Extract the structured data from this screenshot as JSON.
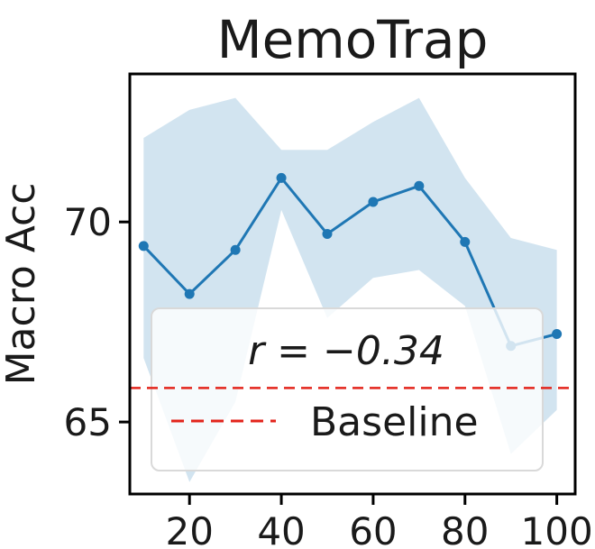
{
  "chart_data": {
    "type": "line",
    "title": "MemoTrap",
    "xlabel": "",
    "ylabel": "Macro Acc",
    "x": [
      10,
      20,
      30,
      40,
      50,
      60,
      70,
      80,
      90,
      100
    ],
    "xticks": [
      "20",
      "40",
      "60",
      "80",
      "100"
    ],
    "yticks": [
      "65",
      "70"
    ],
    "xlim": [
      7,
      104
    ],
    "ylim": [
      63.2,
      73.7
    ],
    "series": [
      {
        "values": [
          69.4,
          68.2,
          69.3,
          71.1,
          69.7,
          70.5,
          70.9,
          69.5,
          66.9,
          67.2
        ],
        "band_upper": [
          72.1,
          72.8,
          73.1,
          71.8,
          71.8,
          72.5,
          73.1,
          71.1,
          69.6,
          69.3
        ],
        "band_lower": [
          66.6,
          63.5,
          65.5,
          70.3,
          67.6,
          68.6,
          68.8,
          67.9,
          64.2,
          65.3
        ],
        "color": "#1f77b4"
      }
    ],
    "baseline": {
      "label": "Baseline",
      "value": 65.85,
      "color": "#e3241b"
    },
    "annotation": "r = −0.34",
    "legend_position": "lower-center",
    "grid": false
  }
}
